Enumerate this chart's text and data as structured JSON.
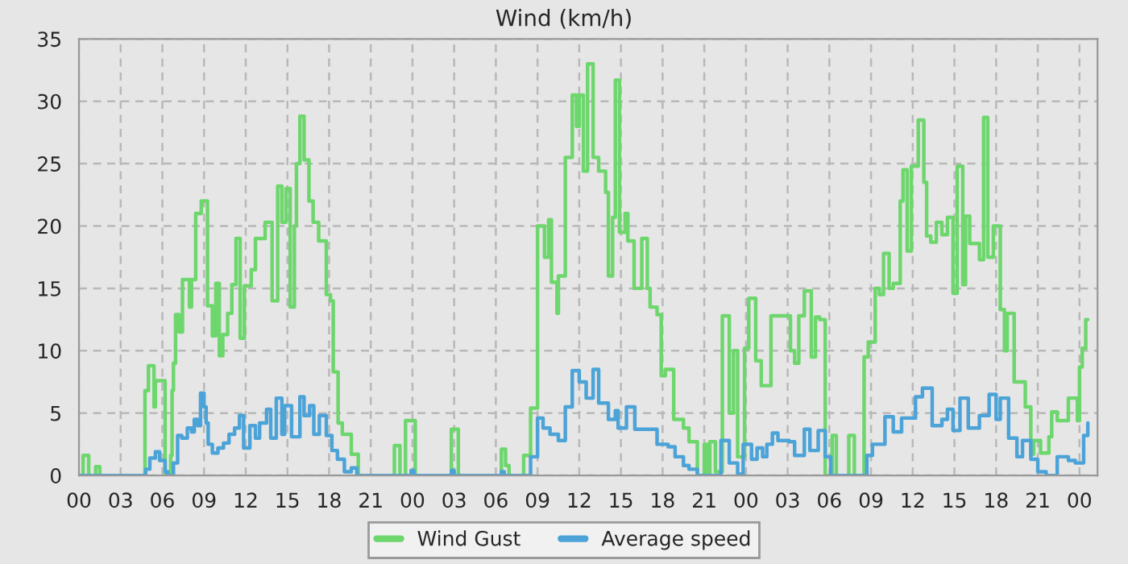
{
  "chart_data": {
    "type": "step",
    "title": "Wind (km/h)",
    "xlim": [
      0,
      73.3
    ],
    "ylim": [
      0,
      35
    ],
    "yticks": [
      0,
      5,
      10,
      15,
      20,
      25,
      30,
      35
    ],
    "xticks": [
      {
        "value": 0,
        "label": "00"
      },
      {
        "value": 3,
        "label": "03"
      },
      {
        "value": 6,
        "label": "06"
      },
      {
        "value": 9,
        "label": "09"
      },
      {
        "value": 12,
        "label": "12"
      },
      {
        "value": 15,
        "label": "15"
      },
      {
        "value": 18,
        "label": "18"
      },
      {
        "value": 21,
        "label": "21"
      },
      {
        "value": 24,
        "label": "00"
      },
      {
        "value": 27,
        "label": "03"
      },
      {
        "value": 30,
        "label": "06"
      },
      {
        "value": 33,
        "label": "09"
      },
      {
        "value": 36,
        "label": "12"
      },
      {
        "value": 39,
        "label": "15"
      },
      {
        "value": 42,
        "label": "18"
      },
      {
        "value": 45,
        "label": "21"
      },
      {
        "value": 48,
        "label": "00"
      },
      {
        "value": 51,
        "label": "03"
      },
      {
        "value": 54,
        "label": "06"
      },
      {
        "value": 57,
        "label": "09"
      },
      {
        "value": 60,
        "label": "12"
      },
      {
        "value": 63,
        "label": "15"
      },
      {
        "value": 66,
        "label": "18"
      },
      {
        "value": 69,
        "label": "21"
      },
      {
        "value": 72,
        "label": "00"
      }
    ],
    "grid": true,
    "legend": "bottom",
    "line_style": "solid",
    "marker": "none",
    "series": [
      {
        "name": "Wind Gust",
        "color": "#6dd66d",
        "x": [
          0,
          0.3,
          0.7,
          1.2,
          1.5,
          4.75,
          5.0,
          5.4,
          5.5,
          6.2,
          6.6,
          6.7,
          6.8,
          6.95,
          7.2,
          7.45,
          7.95,
          8.1,
          8.4,
          8.8,
          9.25,
          9.6,
          9.85,
          10.1,
          10.35,
          10.7,
          11.0,
          11.3,
          11.6,
          11.9,
          12.4,
          12.7,
          13.4,
          13.9,
          14.3,
          14.6,
          14.9,
          15.2,
          15.5,
          15.65,
          15.9,
          16.2,
          16.55,
          16.85,
          17.25,
          17.8,
          18.1,
          18.3,
          18.65,
          18.95,
          19.6,
          20.1,
          22.7,
          23.1,
          23.5,
          24.2,
          26.8,
          27.3,
          30.4,
          30.7,
          30.95,
          32.0,
          32.5,
          33.0,
          33.5,
          33.8,
          34.0,
          34.4,
          34.5,
          35.0,
          35.5,
          35.8,
          36.0,
          36.3,
          36.6,
          37.0,
          37.4,
          37.9,
          38.1,
          38.4,
          38.6,
          38.9,
          39.3,
          39.5,
          39.95,
          40.5,
          40.9,
          41.1,
          41.6,
          41.9,
          42.2,
          42.8,
          43.5,
          43.9,
          44.5,
          45.0,
          45.2,
          45.4,
          45.8,
          46.3,
          46.8,
          47.1,
          47.4,
          47.9,
          48.2,
          48.7,
          49.1,
          49.8,
          51.2,
          51.5,
          51.8,
          52.2,
          52.7,
          53.0,
          53.3,
          53.7,
          54.2,
          54.5,
          55.4,
          55.8,
          56.5,
          56.8,
          57.3,
          57.6,
          57.9,
          58.3,
          58.6,
          59.1,
          59.3,
          59.6,
          59.9,
          60.4,
          60.8,
          61.0,
          61.3,
          61.7,
          62.1,
          62.5,
          62.9,
          63.2,
          63.6,
          63.8,
          64.1,
          64.8,
          65.1,
          65.4,
          65.8,
          66.3,
          66.6,
          66.8,
          67.3,
          68.1,
          68.5,
          68.7,
          69.2,
          69.8,
          70.0,
          70.4,
          71.2,
          71.85,
          72.0,
          72.2,
          72.45,
          72.6
        ],
        "values": [
          0,
          1.6,
          0,
          0.7,
          0,
          6.8,
          8.8,
          5.5,
          7.6,
          0,
          1.6,
          6.8,
          9.0,
          12.9,
          11.5,
          15.7,
          13.5,
          15.7,
          21.0,
          22.0,
          13.6,
          11.2,
          15.4,
          9.6,
          11.3,
          13.0,
          15.3,
          19.0,
          11.0,
          15.2,
          16.5,
          19.0,
          20.3,
          14.0,
          23.2,
          20.3,
          23.0,
          13.5,
          20.0,
          25.0,
          28.8,
          25.3,
          22.0,
          20.3,
          18.8,
          14.5,
          14.0,
          8.3,
          4.2,
          3.3,
          1.7,
          0,
          2.4,
          0,
          4.4,
          0,
          3.7,
          0,
          2.1,
          0.8,
          0,
          1.6,
          5.4,
          20.0,
          17.5,
          20.5,
          15.5,
          13.0,
          16.0,
          25.5,
          30.5,
          28.0,
          30.5,
          24.4,
          33.0,
          25.5,
          24.4,
          22.7,
          16.0,
          20.7,
          31.7,
          19.5,
          21.0,
          18.8,
          15.0,
          19.0,
          15.0,
          13.5,
          12.9,
          8.0,
          8.5,
          4.5,
          3.8,
          2.7,
          0,
          2.5,
          0.1,
          2.7,
          0.3,
          12.8,
          5.0,
          10.0,
          1.5,
          10.2,
          14.2,
          9.2,
          7.2,
          12.8,
          10.0,
          9.0,
          12.8,
          14.8,
          9.5,
          12.7,
          12.5,
          0,
          3.2,
          0,
          3.2,
          0,
          9.5,
          10.7,
          15.0,
          14.5,
          17.8,
          15.0,
          15.4,
          22.0,
          24.5,
          18.0,
          24.8,
          28.5,
          23.5,
          19.2,
          18.7,
          20.3,
          19.3,
          20.7,
          14.6,
          24.8,
          15.3,
          20.8,
          18.6,
          17.3,
          28.7,
          17.5,
          20.0,
          13.3,
          10.0,
          13.0,
          7.5,
          5.5,
          1.7,
          2.8,
          1.8,
          3.1,
          5.1,
          4.4,
          6.2,
          4.4,
          8.7,
          10.2,
          12.5,
          12.5
        ]
      },
      {
        "name": "Average speed",
        "color": "#4ba3d8",
        "x": [
          0,
          4.8,
          5.1,
          5.5,
          5.8,
          6.2,
          6.4,
          6.8,
          7.1,
          7.4,
          7.8,
          8.1,
          8.3,
          8.55,
          8.75,
          9.0,
          9.15,
          9.3,
          9.6,
          10.0,
          10.4,
          10.8,
          11.2,
          11.55,
          11.85,
          12.3,
          12.7,
          13.0,
          13.5,
          13.8,
          14.2,
          14.6,
          14.8,
          15.3,
          15.9,
          16.2,
          16.6,
          16.9,
          17.3,
          17.8,
          18.2,
          18.6,
          19.1,
          19.6,
          20.0,
          23.9,
          24.1,
          26.8,
          27.0,
          30.4,
          30.6,
          32.5,
          33.0,
          33.4,
          33.9,
          34.5,
          35.0,
          35.5,
          36.0,
          36.5,
          37.0,
          37.4,
          38.1,
          38.6,
          38.8,
          39.4,
          40.0,
          40.6,
          41.6,
          42.4,
          42.9,
          43.5,
          43.9,
          44.5,
          46.2,
          46.8,
          47.4,
          47.8,
          48.4,
          48.8,
          49.2,
          49.5,
          49.9,
          50.3,
          51.1,
          51.5,
          52.2,
          52.6,
          53.2,
          53.7,
          54.1,
          56.7,
          57.1,
          58.0,
          58.6,
          59.2,
          60.2,
          60.7,
          61.4,
          62.1,
          62.5,
          62.9,
          63.4,
          64.0,
          64.8,
          65.5,
          66.0,
          66.3,
          66.9,
          67.5,
          67.9,
          68.5,
          69.0,
          69.6,
          70.4,
          71.2,
          71.7,
          72.3,
          72.6
        ],
        "values": [
          0,
          0.5,
          1.4,
          1.9,
          1.2,
          0.3,
          0,
          1.0,
          3.2,
          3.0,
          3.8,
          3.5,
          4.5,
          4.0,
          6.6,
          5.5,
          4.2,
          2.5,
          1.8,
          2.2,
          2.6,
          3.3,
          3.8,
          4.8,
          2.2,
          4.0,
          3.0,
          4.2,
          5.3,
          3.0,
          6.2,
          3.3,
          5.6,
          3.1,
          6.3,
          4.8,
          5.6,
          3.3,
          4.8,
          3.2,
          2.0,
          1.3,
          0.3,
          0.6,
          0,
          0.4,
          0,
          0.4,
          0,
          0.3,
          0,
          1.5,
          4.6,
          3.8,
          3.3,
          2.8,
          5.5,
          8.4,
          7.5,
          6.2,
          8.5,
          5.8,
          4.5,
          5.2,
          3.8,
          5.5,
          3.7,
          3.7,
          2.5,
          2.3,
          1.5,
          0.8,
          0.5,
          0,
          2.8,
          1.0,
          0.1,
          2.5,
          1.3,
          2.2,
          1.5,
          2.5,
          3.4,
          2.8,
          2.7,
          1.6,
          3.7,
          2.0,
          3.6,
          1.5,
          0,
          1.6,
          2.5,
          4.7,
          3.5,
          4.6,
          6.3,
          7.0,
          4.0,
          4.5,
          5.3,
          3.6,
          6.2,
          3.8,
          4.8,
          6.5,
          4.5,
          6.2,
          3.0,
          1.5,
          2.8,
          1.3,
          0.3,
          0,
          1.5,
          1.2,
          1.0,
          3.2,
          4.2
        ]
      }
    ]
  }
}
